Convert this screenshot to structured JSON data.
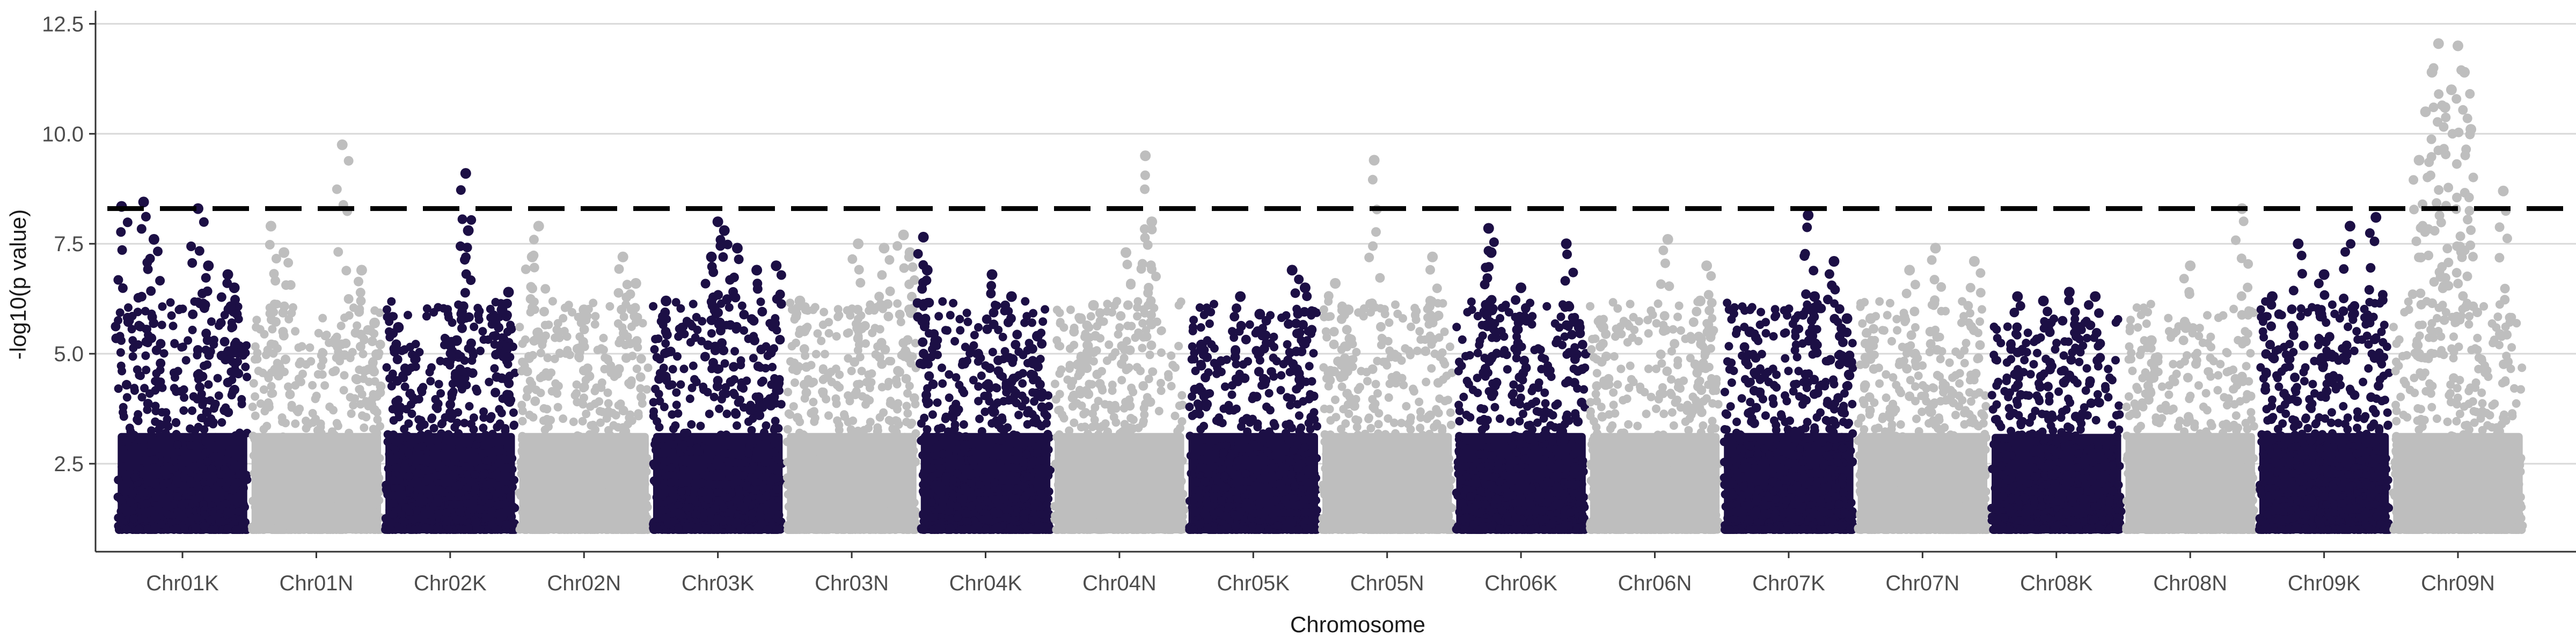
{
  "chart_data": {
    "type": "scatter",
    "title": "",
    "xlabel": "Chromosome",
    "ylabel": "-log10(p value)",
    "ylim": [
      0.5,
      12.7
    ],
    "y_ticks": [
      2.5,
      5.0,
      7.5,
      10.0,
      12.5
    ],
    "y_tick_labels": [
      "2.5",
      "5.0",
      "7.5",
      "10.0",
      "12.5"
    ],
    "gridlines": "horizontal",
    "legend": "none",
    "significance_threshold": 8.3,
    "colors": {
      "dark": "#1c0f45",
      "light": "#bebebe",
      "threshold": "#000000",
      "grid": "#d9d9d9",
      "axis": "#333333"
    },
    "categories": [
      "Chr01K",
      "Chr01N",
      "Chr02K",
      "Chr02N",
      "Chr03K",
      "Chr03N",
      "Chr04K",
      "Chr04N",
      "Chr05K",
      "Chr05N",
      "Chr06K",
      "Chr06N",
      "Chr07K",
      "Chr07N",
      "Chr08K",
      "Chr08N",
      "Chr09K",
      "Chr09N"
    ],
    "series": [
      {
        "chromosome": "Chr01K",
        "color": "dark",
        "max": 8.45,
        "peaks": [
          [
            0.03,
            8.35
          ],
          [
            0.2,
            8.45
          ],
          [
            0.28,
            7.6
          ],
          [
            0.62,
            8.3
          ],
          [
            0.7,
            7.0
          ],
          [
            0.85,
            6.8
          ],
          [
            0.9,
            6.5
          ]
        ]
      },
      {
        "chromosome": "Chr01N",
        "color": "light",
        "max": 9.75,
        "peaks": [
          [
            0.15,
            7.9
          ],
          [
            0.25,
            7.3
          ],
          [
            0.7,
            9.75
          ],
          [
            0.85,
            6.9
          ],
          [
            0.95,
            5.7
          ]
        ]
      },
      {
        "chromosome": "Chr02K",
        "color": "dark",
        "max": 9.1,
        "peaks": [
          [
            0.1,
            5.6
          ],
          [
            0.55,
            5.3
          ],
          [
            0.62,
            9.1
          ],
          [
            0.64,
            7.8
          ],
          [
            0.9,
            6.0
          ],
          [
            0.95,
            6.4
          ]
        ]
      },
      {
        "chromosome": "Chr02N",
        "color": "light",
        "max": 7.9,
        "peaks": [
          [
            0.1,
            7.2
          ],
          [
            0.15,
            7.9
          ],
          [
            0.5,
            6.0
          ],
          [
            0.8,
            7.2
          ],
          [
            0.9,
            6.6
          ]
        ]
      },
      {
        "chromosome": "Chr03K",
        "color": "dark",
        "max": 8.0,
        "peaks": [
          [
            0.1,
            6.2
          ],
          [
            0.45,
            7.2
          ],
          [
            0.5,
            8.0
          ],
          [
            0.55,
            7.8
          ],
          [
            0.65,
            7.4
          ],
          [
            0.8,
            6.9
          ],
          [
            0.95,
            7.0
          ]
        ]
      },
      {
        "chromosome": "Chr03N",
        "color": "light",
        "max": 7.7,
        "peaks": [
          [
            0.1,
            6.2
          ],
          [
            0.55,
            7.5
          ],
          [
            0.75,
            7.4
          ],
          [
            0.9,
            7.7
          ],
          [
            0.95,
            7.3
          ]
        ]
      },
      {
        "chromosome": "Chr04K",
        "color": "dark",
        "max": 7.65,
        "peaks": [
          [
            0.02,
            7.65
          ],
          [
            0.05,
            6.9
          ],
          [
            0.55,
            6.8
          ],
          [
            0.7,
            6.3
          ],
          [
            0.9,
            5.4
          ]
        ]
      },
      {
        "chromosome": "Chr04N",
        "color": "light",
        "max": 9.5,
        "peaks": [
          [
            0.2,
            5.8
          ],
          [
            0.3,
            6.1
          ],
          [
            0.55,
            7.3
          ],
          [
            0.7,
            9.5
          ],
          [
            0.75,
            8.0
          ]
        ]
      },
      {
        "chromosome": "Chr05K",
        "color": "dark",
        "max": 6.9,
        "peaks": [
          [
            0.1,
            5.2
          ],
          [
            0.4,
            6.3
          ],
          [
            0.55,
            5.9
          ],
          [
            0.8,
            6.9
          ],
          [
            0.9,
            6.5
          ]
        ]
      },
      {
        "chromosome": "Chr05N",
        "color": "light",
        "max": 9.4,
        "peaks": [
          [
            0.1,
            6.6
          ],
          [
            0.2,
            6.0
          ],
          [
            0.4,
            9.4
          ],
          [
            0.85,
            7.2
          ]
        ]
      },
      {
        "chromosome": "Chr06K",
        "color": "dark",
        "max": 7.85,
        "peaks": [
          [
            0.25,
            7.85
          ],
          [
            0.27,
            7.3
          ],
          [
            0.5,
            6.5
          ],
          [
            0.85,
            7.5
          ],
          [
            0.95,
            5.6
          ]
        ]
      },
      {
        "chromosome": "Chr06N",
        "color": "light",
        "max": 7.6,
        "peaks": [
          [
            0.1,
            5.6
          ],
          [
            0.6,
            7.6
          ],
          [
            0.85,
            6.2
          ],
          [
            0.9,
            7.0
          ]
        ]
      },
      {
        "chromosome": "Chr07K",
        "color": "dark",
        "max": 8.15,
        "peaks": [
          [
            0.2,
            5.5
          ],
          [
            0.7,
            6.3
          ],
          [
            0.65,
            8.15
          ],
          [
            0.85,
            7.1
          ],
          [
            0.95,
            5.8
          ]
        ]
      },
      {
        "chromosome": "Chr07N",
        "color": "light",
        "max": 7.4,
        "peaks": [
          [
            0.1,
            5.8
          ],
          [
            0.4,
            6.9
          ],
          [
            0.6,
            7.4
          ],
          [
            0.9,
            7.1
          ]
        ]
      },
      {
        "chromosome": "Chr08K",
        "color": "dark",
        "max": 6.4,
        "peaks": [
          [
            0.2,
            6.3
          ],
          [
            0.4,
            6.2
          ],
          [
            0.6,
            6.4
          ],
          [
            0.8,
            6.3
          ]
        ]
      },
      {
        "chromosome": "Chr08N",
        "color": "light",
        "max": 8.3,
        "peaks": [
          [
            0.2,
            5.3
          ],
          [
            0.5,
            7.0
          ],
          [
            0.9,
            8.3
          ]
        ]
      },
      {
        "chromosome": "Chr09K",
        "color": "dark",
        "max": 8.1,
        "peaks": [
          [
            0.1,
            6.3
          ],
          [
            0.3,
            7.5
          ],
          [
            0.5,
            6.8
          ],
          [
            0.7,
            7.9
          ],
          [
            0.9,
            8.1
          ]
        ]
      },
      {
        "chromosome": "Chr09N",
        "color": "light",
        "max": 12.05,
        "peaks": [
          [
            0.2,
            9.4
          ],
          [
            0.25,
            10.5
          ],
          [
            0.3,
            11.4
          ],
          [
            0.35,
            12.05
          ],
          [
            0.4,
            10.6
          ],
          [
            0.45,
            11.0
          ],
          [
            0.5,
            12.0
          ],
          [
            0.55,
            11.4
          ],
          [
            0.6,
            10.1
          ],
          [
            0.85,
            8.7
          ]
        ]
      }
    ]
  }
}
